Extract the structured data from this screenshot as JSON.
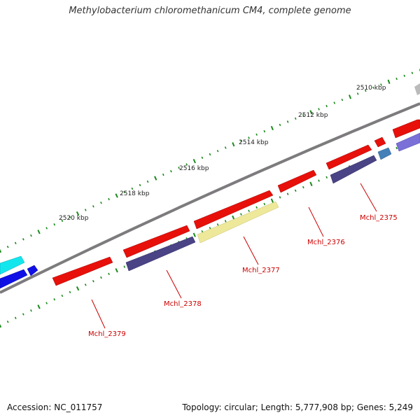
{
  "title": "Methylobacterium chloromethanicum CM4, complete genome",
  "footer": {
    "accession": "Accession: NC_011757",
    "topology": "Topology: circular; Length: 5,777,908 bp; Genes: 5,249"
  },
  "kbp_labels": [
    "2510 kbp",
    "2512 kbp",
    "2514 kbp",
    "2516 kbp",
    "2518 kbp",
    "2520 kbp"
  ],
  "gene_labels": [
    "Mchl_2375",
    "Mchl_2376",
    "Mchl_2377",
    "Mchl_2378",
    "Mchl_2379"
  ],
  "colors": {
    "cds_forward": "#e8100a",
    "cds_reverse": "#4a4385",
    "pale_yellow": "#eee89a",
    "cyan": "#14e6ee",
    "blue": "#1010e6",
    "steel_blue": "#4580b8",
    "lavender": "#7a70d8",
    "gray": "#bbbbbb",
    "backbone": "#7d7b7d",
    "tick": "#1a8a1a",
    "label": "#cc0000"
  }
}
